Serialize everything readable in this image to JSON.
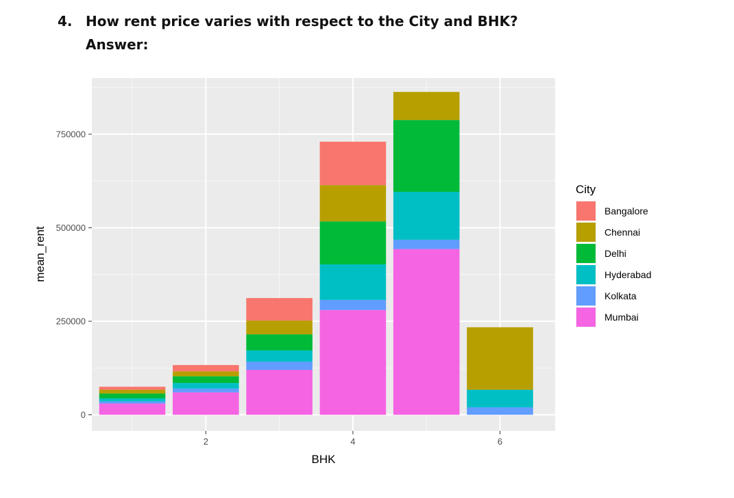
{
  "heading": {
    "number": "4.",
    "question": "How rent price varies with respect to the City and BHK?",
    "answer_label": "Answer:"
  },
  "chart_data": {
    "type": "bar",
    "stacked": true,
    "xlabel": "BHK",
    "ylabel": "mean_rent",
    "x_ticks": [
      2,
      4,
      6
    ],
    "x_range": [
      0.45,
      6.75
    ],
    "y_ticks": [
      0,
      250000,
      500000,
      750000
    ],
    "y_tick_labels": [
      "0",
      "250000",
      "500000",
      "750000"
    ],
    "y_range": [
      -43000,
      900000
    ],
    "grid": true,
    "legend_position": "right",
    "legend_title": "City",
    "categories": [
      1,
      2,
      3,
      4,
      5,
      6
    ],
    "series": [
      {
        "name": "Mumbai",
        "color": "#F564E3",
        "values": [
          30000,
          60000,
          120000,
          280000,
          443000,
          0
        ]
      },
      {
        "name": "Kolkata",
        "color": "#619CFF",
        "values": [
          6000,
          10000,
          22000,
          27000,
          25000,
          20000
        ]
      },
      {
        "name": "Hyderabad",
        "color": "#00BFC4",
        "values": [
          8000,
          15000,
          30000,
          95000,
          128000,
          47000
        ]
      },
      {
        "name": "Delhi",
        "color": "#00BA38",
        "values": [
          13000,
          18000,
          43000,
          115000,
          192000,
          0
        ]
      },
      {
        "name": "Chennai",
        "color": "#B79F00",
        "values": [
          10000,
          13000,
          37000,
          97000,
          75000,
          167000
        ]
      },
      {
        "name": "Bangalore",
        "color": "#F8766D",
        "values": [
          8000,
          17000,
          60000,
          116000,
          0,
          0
        ]
      }
    ],
    "legend_order": [
      "Bangalore",
      "Chennai",
      "Delhi",
      "Hyderabad",
      "Kolkata",
      "Mumbai"
    ]
  }
}
